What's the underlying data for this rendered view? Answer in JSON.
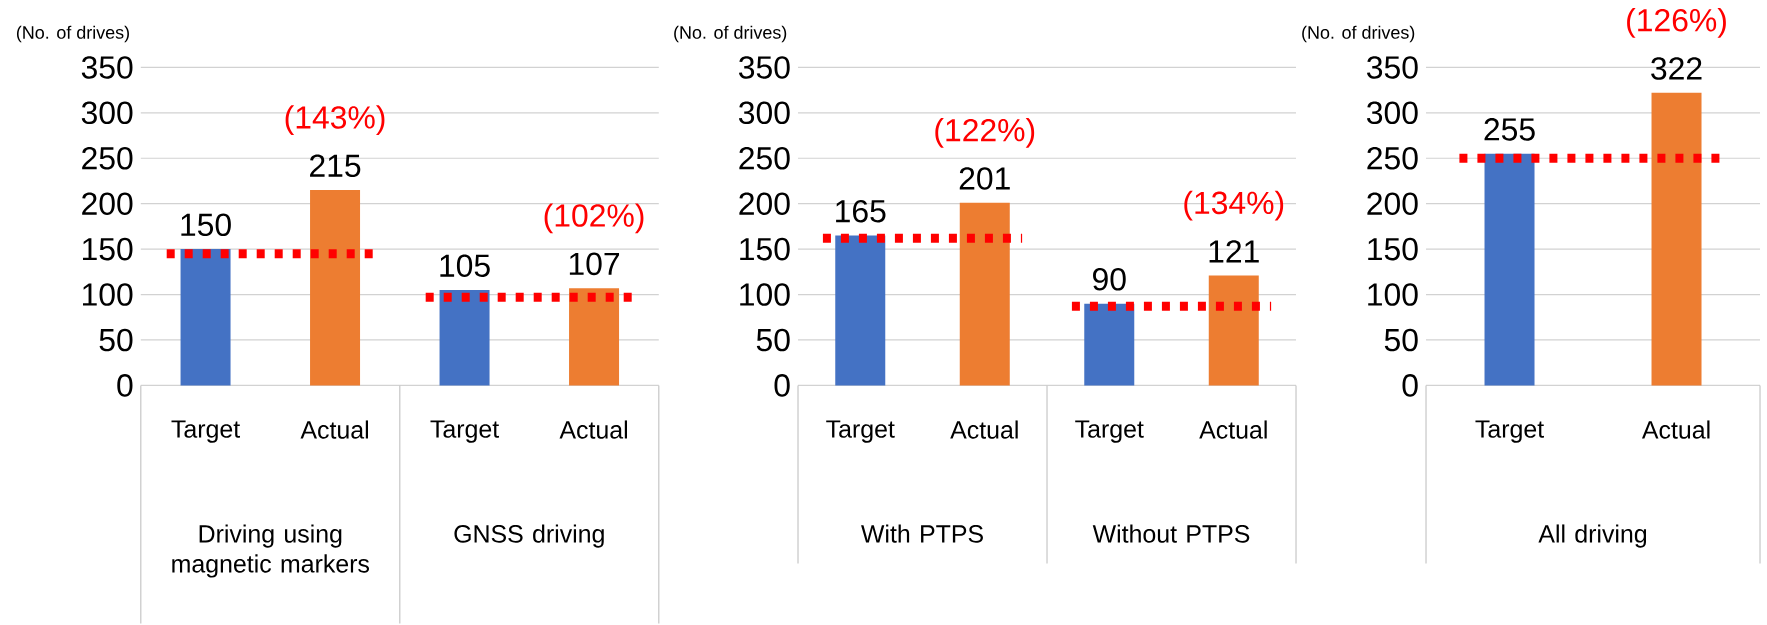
{
  "chart_data": [
    {
      "type": "bar",
      "ylabel": "(No. of drives)",
      "categories": [
        "Target",
        "Actual",
        "Target",
        "Actual"
      ],
      "values": [
        150,
        215,
        105,
        107
      ],
      "colors": [
        "#4472c4",
        "#ed7d31",
        "#4472c4",
        "#ed7d31"
      ],
      "data_labels": true,
      "ylim": [
        0,
        350
      ],
      "yticks": [
        0,
        50,
        100,
        150,
        200,
        250,
        300,
        350
      ],
      "grid": "y",
      "ref_lines": [
        {
          "axis": "y",
          "value": 145,
          "color": "#ff0000",
          "line_style": "dotted"
        },
        {
          "axis": "y",
          "value": 97,
          "color": "#ff0000",
          "line_style": "dotted"
        }
      ],
      "annotations": [
        "(143%)",
        "(102%)",
        "Driving using magnetic markers",
        "GNSS driving"
      ]
    },
    {
      "type": "bar",
      "ylabel": "(No. of drives)",
      "categories": [
        "Target",
        "Actual",
        "Target",
        "Actual"
      ],
      "values": [
        165,
        201,
        90,
        121
      ],
      "colors": [
        "#4472c4",
        "#ed7d31",
        "#4472c4",
        "#ed7d31"
      ],
      "data_labels": true,
      "ylim": [
        0,
        350
      ],
      "yticks": [
        0,
        50,
        100,
        150,
        200,
        250,
        300,
        350
      ],
      "grid": "y",
      "ref_lines": [
        {
          "axis": "y",
          "value": 162,
          "color": "#ff0000",
          "line_style": "dotted"
        },
        {
          "axis": "y",
          "value": 87,
          "color": "#ff0000",
          "line_style": "dotted"
        }
      ],
      "annotations": [
        "(122%)",
        "(134%)",
        "With PTPS",
        "Without PTPS"
      ]
    },
    {
      "type": "bar",
      "ylabel": "(No. of drives)",
      "categories": [
        "Target",
        "Actual"
      ],
      "values": [
        255,
        322
      ],
      "colors": [
        "#4472c4",
        "#ed7d31"
      ],
      "data_labels": true,
      "ylim": [
        0,
        350
      ],
      "yticks": [
        0,
        50,
        100,
        150,
        200,
        250,
        300,
        350
      ],
      "grid": "y",
      "ref_lines": [
        {
          "axis": "y",
          "value": 250,
          "color": "#ff0000",
          "line_style": "dotted"
        }
      ],
      "annotations": [
        "(126%)",
        "All driving"
      ]
    }
  ]
}
